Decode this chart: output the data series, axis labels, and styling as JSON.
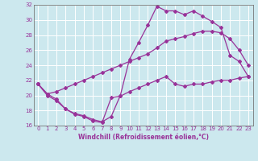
{
  "xlabel": "Windchill (Refroidissement éolien,°C)",
  "xlim": [
    -0.5,
    23.5
  ],
  "ylim": [
    16,
    32
  ],
  "xticks": [
    0,
    1,
    2,
    3,
    4,
    5,
    6,
    7,
    8,
    9,
    10,
    11,
    12,
    13,
    14,
    15,
    16,
    17,
    18,
    19,
    20,
    21,
    22,
    23
  ],
  "yticks": [
    16,
    18,
    20,
    22,
    24,
    26,
    28,
    30,
    32
  ],
  "line_color": "#993399",
  "bg_color": "#cce8ee",
  "grid_color": "#ffffff",
  "series": {
    "line1_x": [
      0,
      1,
      2,
      3,
      4,
      5,
      6,
      7,
      8,
      9,
      10,
      11,
      12,
      13,
      14,
      15,
      16,
      17,
      18,
      19,
      20,
      21,
      22,
      23
    ],
    "line1_y": [
      21.5,
      20.2,
      19.5,
      18.2,
      17.6,
      17.3,
      16.8,
      16.5,
      17.2,
      20.0,
      24.8,
      27.0,
      29.3,
      31.8,
      31.2,
      31.2,
      30.7,
      31.2,
      30.5,
      29.8,
      29.0,
      25.3,
      24.5,
      22.5
    ],
    "line2_x": [
      0,
      1,
      2,
      3,
      4,
      5,
      6,
      7,
      8,
      9,
      10,
      11,
      12,
      13,
      14,
      15,
      16,
      17,
      18,
      19,
      20,
      21,
      22,
      23
    ],
    "line2_y": [
      21.5,
      20.2,
      20.5,
      21.0,
      21.5,
      22.0,
      22.5,
      23.0,
      23.5,
      24.0,
      24.5,
      25.0,
      25.5,
      26.3,
      27.2,
      27.5,
      27.8,
      28.2,
      28.5,
      28.5,
      28.3,
      27.5,
      26.0,
      24.0
    ],
    "line3_x": [
      0,
      1,
      2,
      3,
      4,
      5,
      6,
      7,
      8,
      9,
      10,
      11,
      12,
      13,
      14,
      15,
      16,
      17,
      18,
      19,
      20,
      21,
      22,
      23
    ],
    "line3_y": [
      21.5,
      20.0,
      19.3,
      18.2,
      17.5,
      17.2,
      16.6,
      16.4,
      19.7,
      19.9,
      20.5,
      21.0,
      21.5,
      22.0,
      22.5,
      21.5,
      21.2,
      21.5,
      21.5,
      21.8,
      22.0,
      22.0,
      22.3,
      22.5
    ]
  }
}
